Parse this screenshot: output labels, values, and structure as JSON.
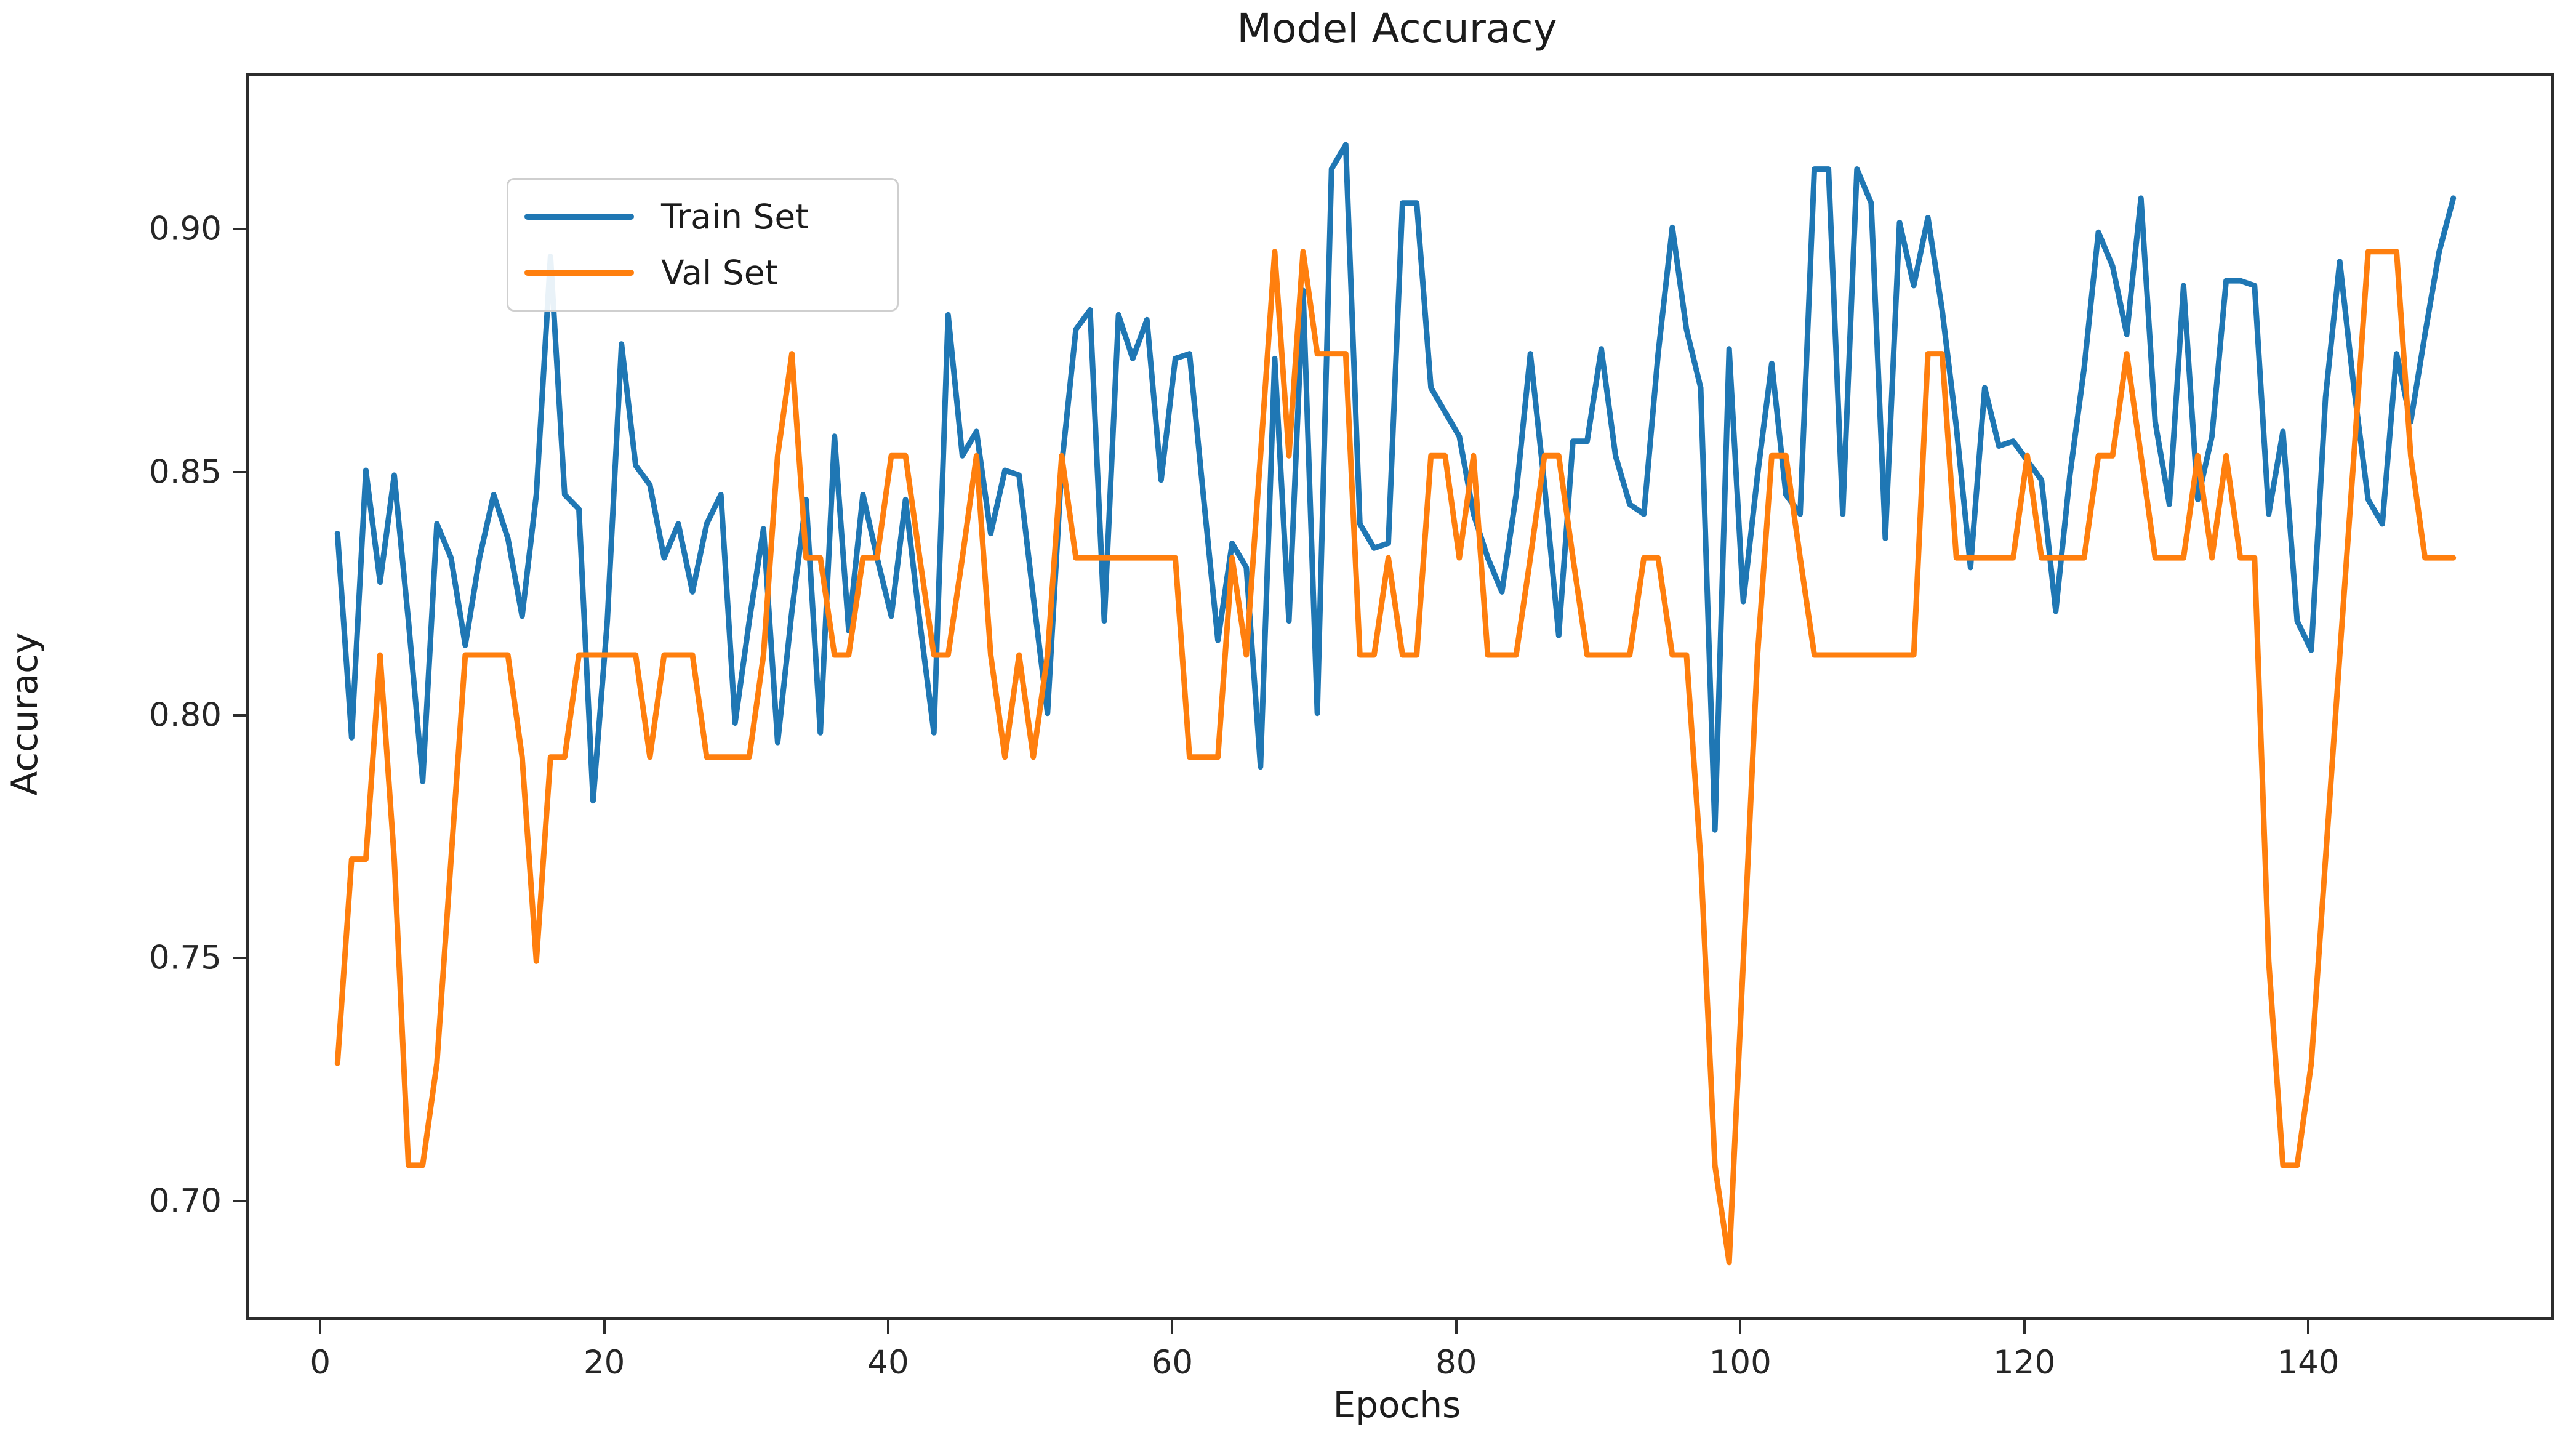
{
  "figure": {
    "title": "Model Accuracy",
    "xlabel": "Epochs",
    "ylabel": "Accuracy"
  },
  "legend": {
    "items": [
      {
        "label": "Train Set",
        "color": "#1f77b4"
      },
      {
        "label": "Val Set",
        "color": "#ff7f0e"
      }
    ]
  },
  "chart_data": {
    "type": "line",
    "title": "Model Accuracy",
    "xlabel": "Epochs",
    "ylabel": "Accuracy",
    "grid": false,
    "legend_position": "upper left",
    "xlim": [
      -5.21,
      156.86
    ],
    "ylim": [
      0.6767,
      0.9322
    ],
    "x_ticks": [
      0,
      20,
      40,
      60,
      80,
      100,
      120,
      140
    ],
    "y_ticks": [
      0.7,
      0.75,
      0.8,
      0.85,
      0.9
    ],
    "x": [
      1,
      2,
      3,
      4,
      5,
      6,
      7,
      8,
      9,
      10,
      11,
      12,
      13,
      14,
      15,
      16,
      17,
      18,
      19,
      20,
      21,
      22,
      23,
      24,
      25,
      26,
      27,
      28,
      29,
      30,
      31,
      32,
      33,
      34,
      35,
      36,
      37,
      38,
      39,
      40,
      41,
      42,
      43,
      44,
      45,
      46,
      47,
      48,
      49,
      50,
      51,
      52,
      53,
      54,
      55,
      56,
      57,
      58,
      59,
      60,
      61,
      62,
      63,
      64,
      65,
      66,
      67,
      68,
      69,
      70,
      71,
      72,
      73,
      74,
      75,
      76,
      77,
      78,
      79,
      80,
      81,
      82,
      83,
      84,
      85,
      86,
      87,
      88,
      89,
      90,
      91,
      92,
      93,
      94,
      95,
      96,
      97,
      98,
      99,
      100,
      101,
      102,
      103,
      104,
      105,
      106,
      107,
      108,
      109,
      110,
      111,
      112,
      113,
      114,
      115,
      116,
      117,
      118,
      119,
      120,
      121,
      122,
      123,
      124,
      125,
      126,
      127,
      128,
      129,
      130,
      131,
      132,
      133,
      134,
      135,
      136,
      137,
      138,
      139,
      140,
      141,
      142,
      143,
      144,
      145,
      146,
      147,
      148,
      149,
      150
    ],
    "series": [
      {
        "name": "Train Set",
        "color": "#1f77b4",
        "values": [
          0.838,
          0.796,
          0.851,
          0.828,
          0.85,
          0.82,
          0.787,
          0.84,
          0.833,
          0.815,
          0.833,
          0.846,
          0.837,
          0.821,
          0.846,
          0.895,
          0.846,
          0.843,
          0.783,
          0.82,
          0.877,
          0.852,
          0.848,
          0.833,
          0.84,
          0.826,
          0.84,
          0.846,
          0.799,
          0.82,
          0.839,
          0.795,
          0.822,
          0.845,
          0.797,
          0.858,
          0.818,
          0.846,
          0.833,
          0.821,
          0.845,
          0.82,
          0.797,
          0.883,
          0.854,
          0.859,
          0.838,
          0.851,
          0.85,
          0.825,
          0.801,
          0.852,
          0.88,
          0.884,
          0.82,
          0.883,
          0.874,
          0.882,
          0.849,
          0.874,
          0.875,
          0.845,
          0.816,
          0.836,
          0.831,
          0.79,
          0.874,
          0.82,
          0.888,
          0.801,
          0.913,
          0.918,
          0.84,
          0.835,
          0.836,
          0.906,
          0.906,
          0.868,
          0.863,
          0.858,
          0.842,
          0.833,
          0.826,
          0.846,
          0.875,
          0.848,
          0.817,
          0.857,
          0.857,
          0.876,
          0.854,
          0.844,
          0.842,
          0.875,
          0.901,
          0.88,
          0.868,
          0.777,
          0.876,
          0.824,
          0.85,
          0.873,
          0.846,
          0.842,
          0.913,
          0.913,
          0.842,
          0.913,
          0.906,
          0.837,
          0.902,
          0.889,
          0.903,
          0.884,
          0.86,
          0.831,
          0.868,
          0.856,
          0.857,
          0.853,
          0.849,
          0.822,
          0.85,
          0.872,
          0.9,
          0.893,
          0.879,
          0.907,
          0.861,
          0.844,
          0.889,
          0.845,
          0.858,
          0.89,
          0.89,
          0.889,
          0.842,
          0.859,
          0.82,
          0.814,
          0.866,
          0.894,
          0.868,
          0.845,
          0.84,
          0.875,
          0.861,
          0.879,
          0.896,
          0.907
        ]
      },
      {
        "name": "Val Set",
        "color": "#ff7f0e",
        "values": [
          0.729,
          0.771,
          0.771,
          0.813,
          0.771,
          0.708,
          0.708,
          0.729,
          0.771,
          0.813,
          0.813,
          0.813,
          0.813,
          0.792,
          0.75,
          0.792,
          0.792,
          0.813,
          0.813,
          0.813,
          0.813,
          0.813,
          0.792,
          0.813,
          0.813,
          0.813,
          0.792,
          0.792,
          0.792,
          0.792,
          0.813,
          0.854,
          0.875,
          0.833,
          0.833,
          0.813,
          0.813,
          0.833,
          0.833,
          0.854,
          0.854,
          0.833,
          0.813,
          0.813,
          0.833,
          0.854,
          0.813,
          0.792,
          0.813,
          0.792,
          0.813,
          0.854,
          0.833,
          0.833,
          0.833,
          0.833,
          0.833,
          0.833,
          0.833,
          0.833,
          0.792,
          0.792,
          0.792,
          0.833,
          0.813,
          0.854,
          0.896,
          0.854,
          0.896,
          0.875,
          0.875,
          0.875,
          0.813,
          0.813,
          0.833,
          0.813,
          0.813,
          0.854,
          0.854,
          0.833,
          0.854,
          0.813,
          0.813,
          0.813,
          0.833,
          0.854,
          0.854,
          0.833,
          0.813,
          0.813,
          0.813,
          0.813,
          0.833,
          0.833,
          0.813,
          0.813,
          0.771,
          0.708,
          0.688,
          0.75,
          0.813,
          0.854,
          0.854,
          0.833,
          0.813,
          0.813,
          0.813,
          0.813,
          0.813,
          0.813,
          0.813,
          0.813,
          0.875,
          0.875,
          0.833,
          0.833,
          0.833,
          0.833,
          0.833,
          0.854,
          0.833,
          0.833,
          0.833,
          0.833,
          0.854,
          0.854,
          0.875,
          0.854,
          0.833,
          0.833,
          0.833,
          0.854,
          0.833,
          0.854,
          0.833,
          0.833,
          0.75,
          0.708,
          0.708,
          0.729,
          0.771,
          0.813,
          0.854,
          0.896,
          0.896,
          0.896,
          0.854,
          0.833,
          0.833,
          0.833
        ]
      }
    ]
  }
}
